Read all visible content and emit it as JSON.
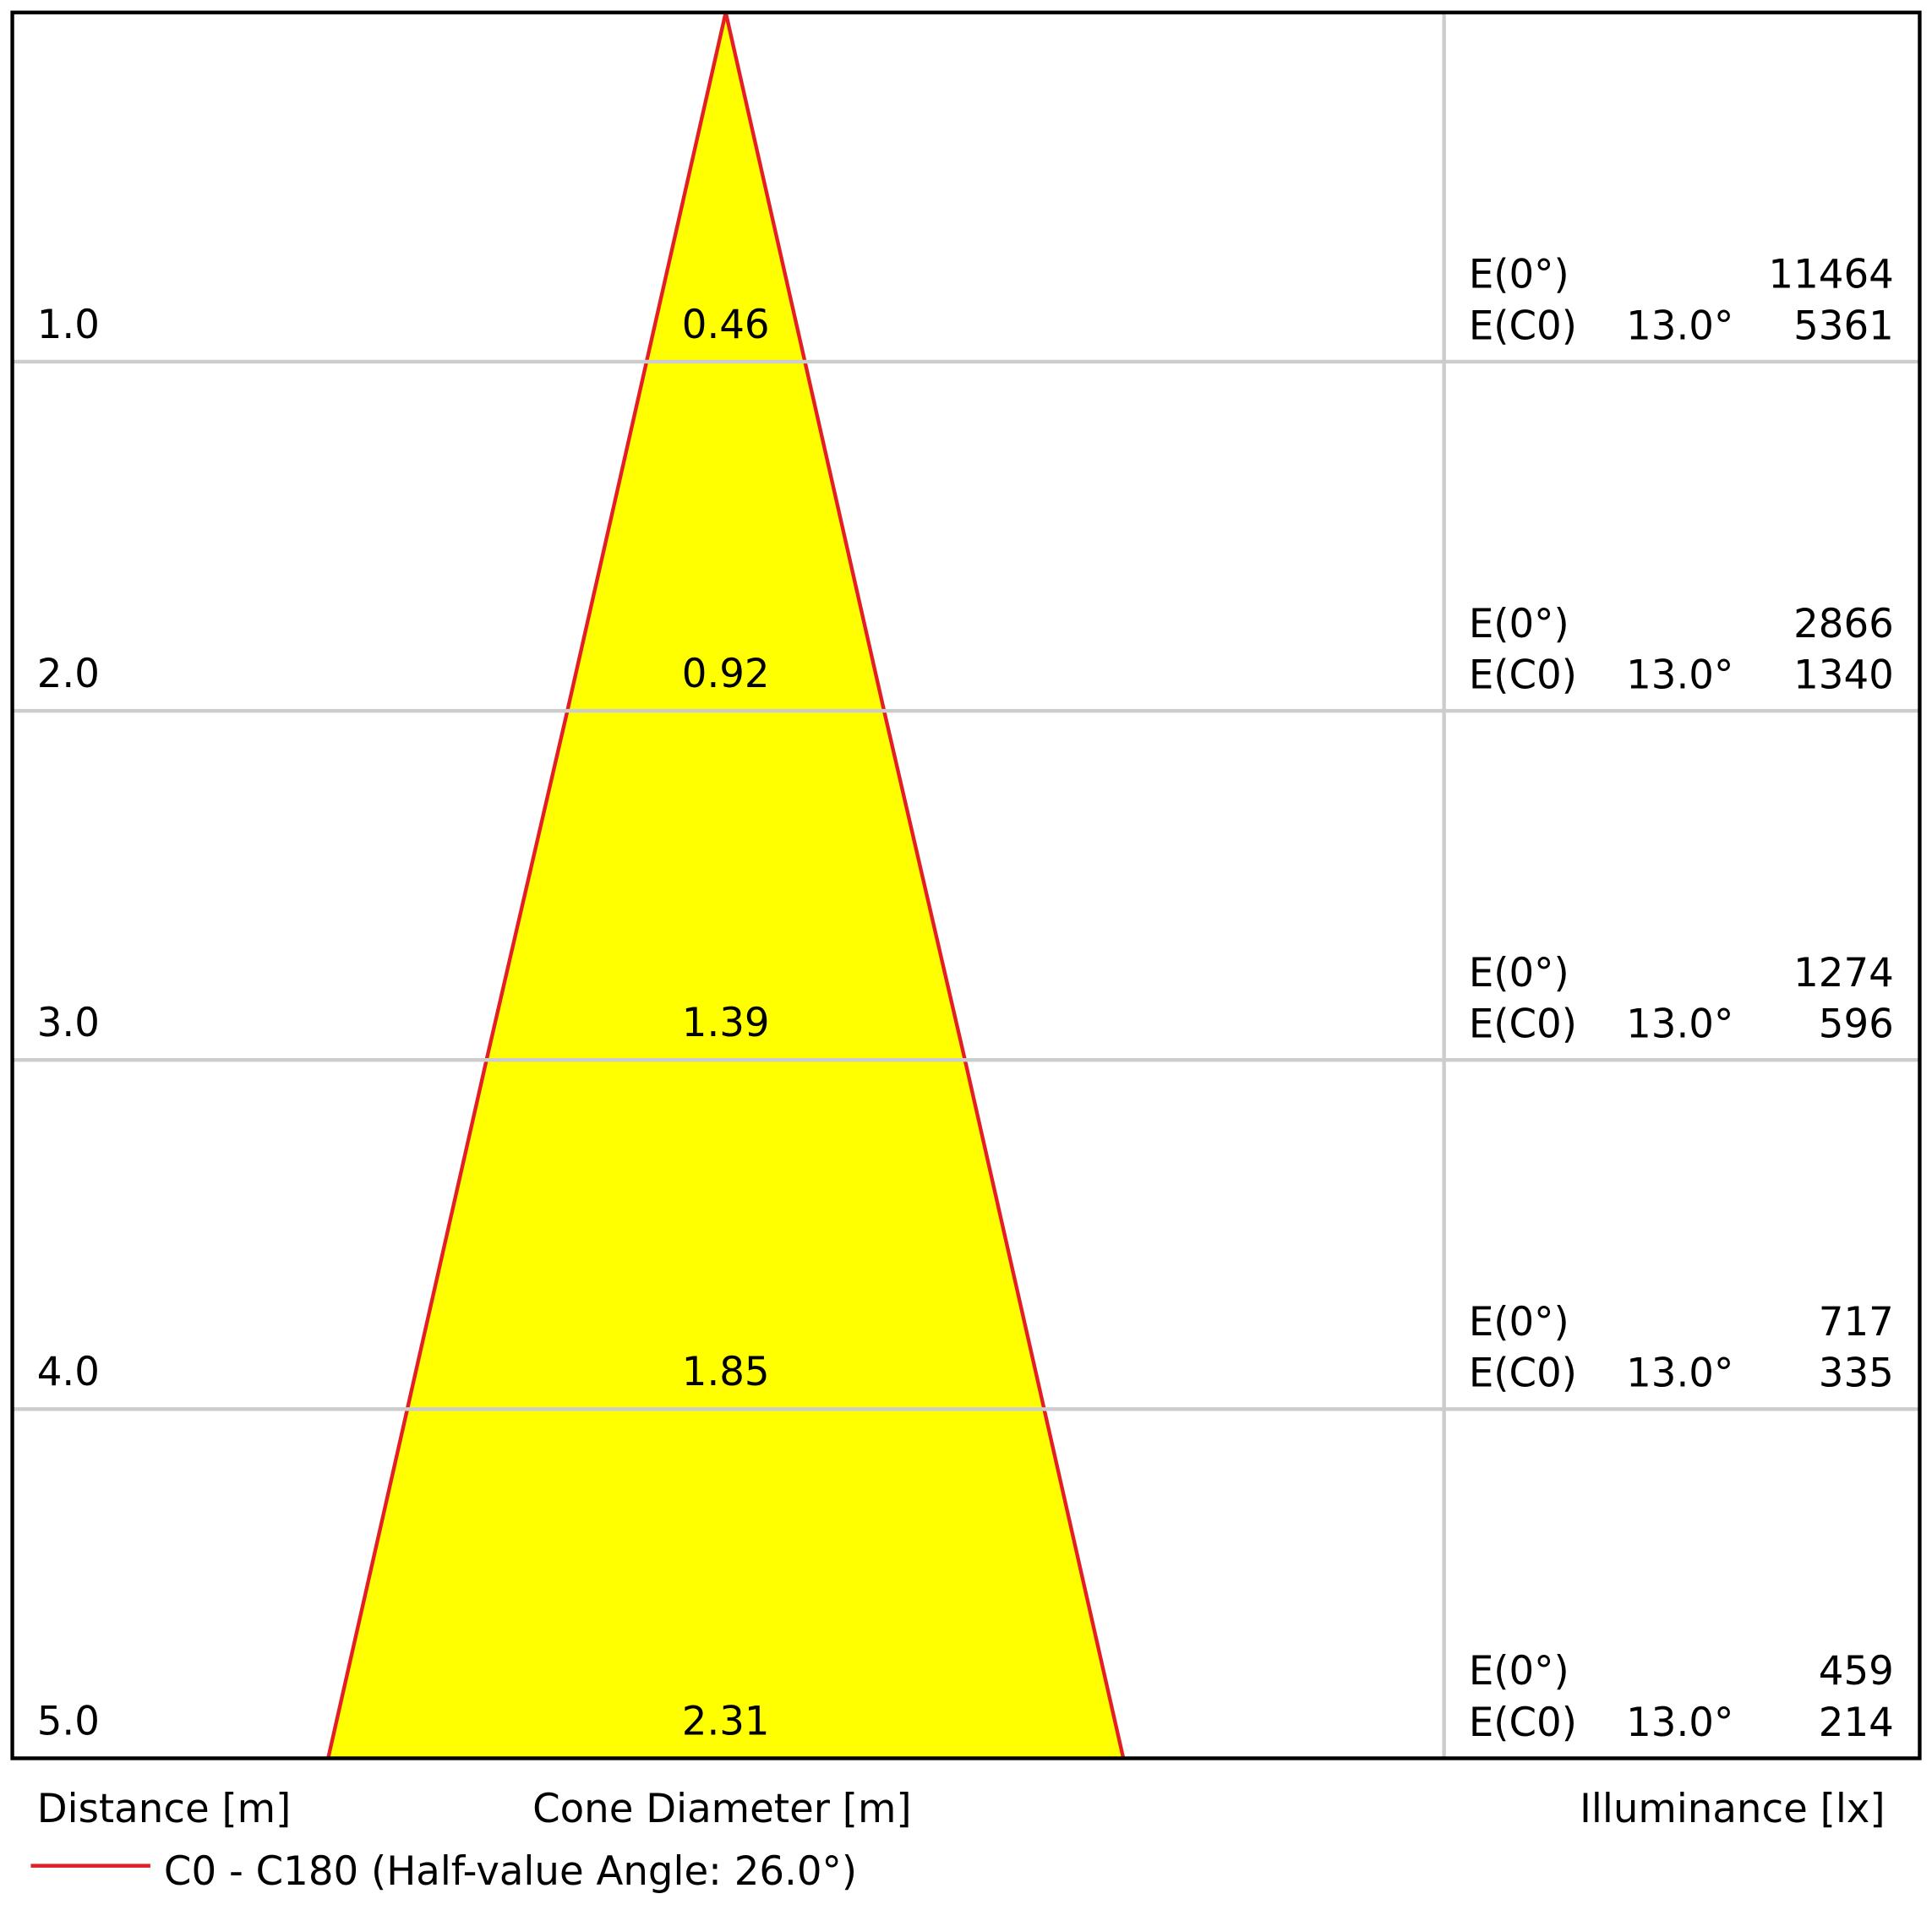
{
  "chart_data": {
    "type": "cone",
    "distances": [
      {
        "value": 1,
        "label": "1.0"
      },
      {
        "value": 2,
        "label": "2.0"
      },
      {
        "value": 3,
        "label": "3.0"
      },
      {
        "value": 4,
        "label": "4.0"
      },
      {
        "value": 5,
        "label": "5.0"
      }
    ],
    "diameters": [
      0.46,
      0.92,
      1.39,
      1.85,
      2.31
    ],
    "e0_label": "E(0°)",
    "ec0_label": "E(C0)",
    "e0": [
      11464,
      2866,
      1274,
      717,
      459
    ],
    "ec0_angle": [
      "13.0°",
      "13.0°",
      "13.0°",
      "13.0°",
      "13.0°"
    ],
    "ec0": [
      5361,
      1340,
      596,
      335,
      214
    ],
    "distance_label": "Distance [m]",
    "diameter_label": "Cone Diameter [m]",
    "illuminance_label": "Illuminance [lx]",
    "legend": "C0 - C180 (Half-value Angle: 26.0°)",
    "fill_color": "#ffff00",
    "line_color": "#e31e24"
  }
}
